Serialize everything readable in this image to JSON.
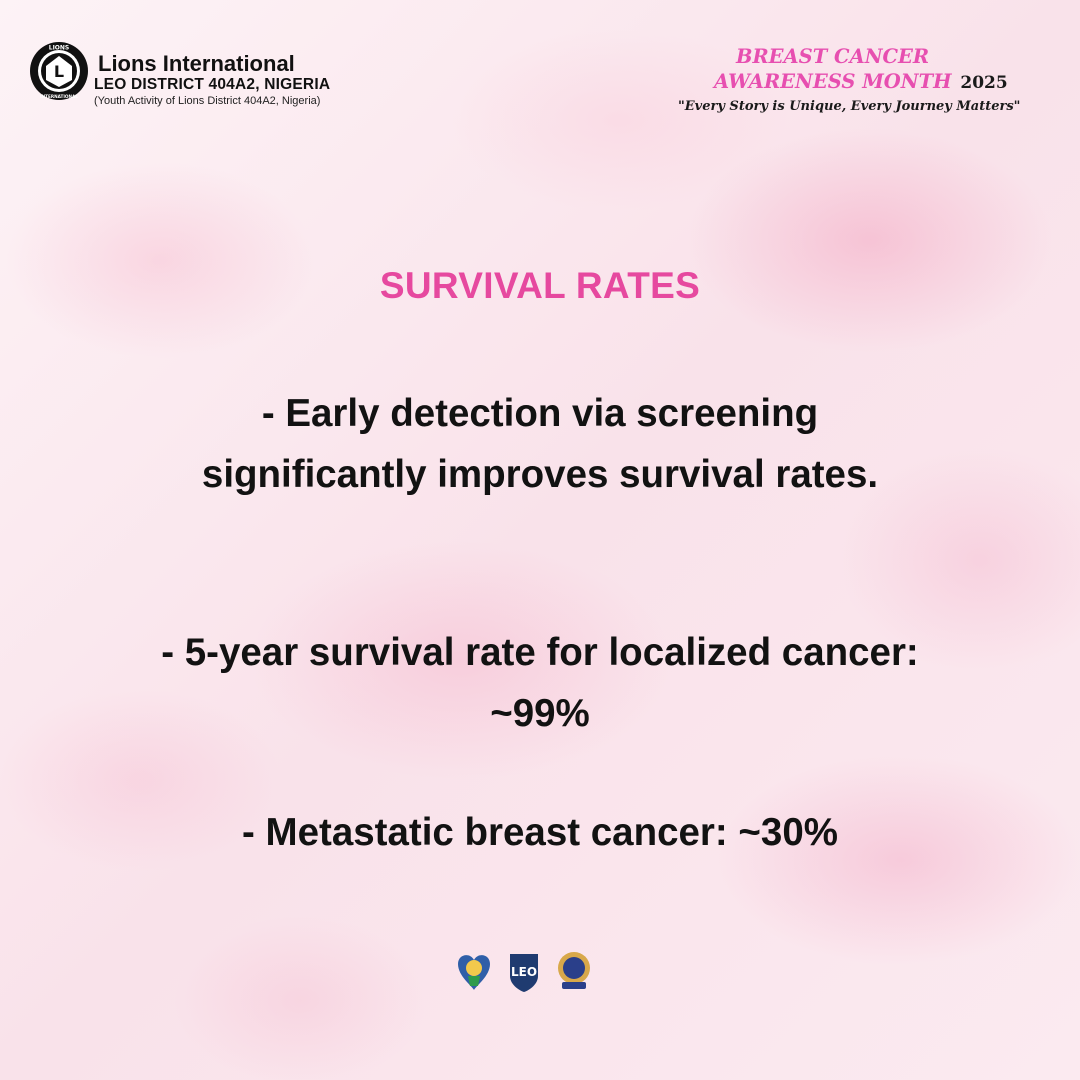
{
  "header": {
    "org_name": "Lions International",
    "district": "LEO DISTRICT 404A2, NIGERIA",
    "youth_note": "(Youth Activity of Lions District 404A2, Nigeria)",
    "logo_text_top": "LIONS",
    "logo_text_bottom": "INTERNATIONAL"
  },
  "campaign": {
    "line1": "BREAST CANCER",
    "line2": "AWARENESS MONTH",
    "year": "2025",
    "tagline": "\"Every Story is Unique,  Every Journey Matters\""
  },
  "content": {
    "title": "SURVIVAL RATES",
    "point1": "- Early detection via screening significantly improves survival rates.",
    "point2": "- 5-year survival rate for localized cancer: ~99%",
    "point3": "- Metastatic breast cancer: ~30%"
  },
  "footer": {
    "logos": [
      "district-logo-icon",
      "leo-logo-icon",
      "lions-club-emblem-icon"
    ]
  },
  "colors": {
    "accent_pink": "#e6499f",
    "campaign_pink": "#e74fb0",
    "text_dark": "#121212"
  }
}
